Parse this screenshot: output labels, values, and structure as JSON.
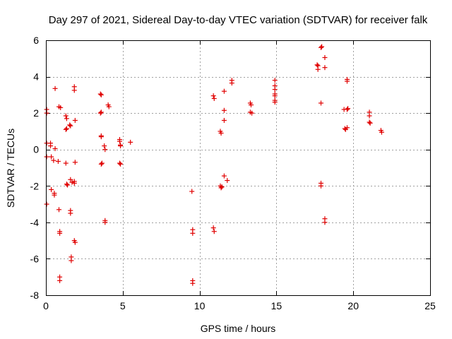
{
  "chart_data": {
    "type": "scatter",
    "title": "Day 297 of 2021, Sidereal Day-to-day VTEC variation (SDTVAR) for receiver falk",
    "xlabel": "GPS time / hours",
    "ylabel": "SDTVAR / TECUs",
    "xlim": [
      0,
      25
    ],
    "ylim": [
      -8,
      6
    ],
    "xticks": [
      0,
      5,
      10,
      15,
      20,
      25
    ],
    "yticks": [
      -8,
      -6,
      -4,
      -2,
      0,
      2,
      4,
      6
    ],
    "grid": true,
    "marker": "plus",
    "color": "#e00000",
    "series": [
      {
        "name": "SDTVAR",
        "points": [
          [
            0.05,
            2.2
          ],
          [
            0.05,
            2.0
          ],
          [
            0.05,
            0.35
          ],
          [
            0.05,
            -0.4
          ],
          [
            0.05,
            -3.0
          ],
          [
            0.3,
            0.35
          ],
          [
            0.3,
            0.2
          ],
          [
            0.35,
            -0.4
          ],
          [
            0.35,
            -2.2
          ],
          [
            0.5,
            -0.6
          ],
          [
            0.55,
            -2.4
          ],
          [
            0.6,
            3.35
          ],
          [
            0.6,
            0.05
          ],
          [
            0.55,
            -2.5
          ],
          [
            0.8,
            -0.65
          ],
          [
            0.85,
            -3.3
          ],
          [
            0.9,
            -4.5
          ],
          [
            0.9,
            -4.6
          ],
          [
            0.9,
            -7.0
          ],
          [
            0.9,
            -7.2
          ],
          [
            0.95,
            2.3
          ],
          [
            0.85,
            2.35
          ],
          [
            1.3,
            1.85
          ],
          [
            1.35,
            1.7
          ],
          [
            1.3,
            1.1
          ],
          [
            1.35,
            1.15
          ],
          [
            1.3,
            -0.75
          ],
          [
            1.35,
            -1.9
          ],
          [
            1.4,
            -1.95
          ],
          [
            1.55,
            1.35
          ],
          [
            1.6,
            1.3
          ],
          [
            1.6,
            -1.65
          ],
          [
            1.6,
            -3.35
          ],
          [
            1.6,
            -3.5
          ],
          [
            1.65,
            -5.9
          ],
          [
            1.65,
            -6.1
          ],
          [
            1.7,
            -1.8
          ],
          [
            1.85,
            3.45
          ],
          [
            1.85,
            3.25
          ],
          [
            1.9,
            1.6
          ],
          [
            1.9,
            -0.7
          ],
          [
            1.85,
            -1.75
          ],
          [
            1.85,
            -1.85
          ],
          [
            1.85,
            -5.0
          ],
          [
            1.9,
            -5.1
          ],
          [
            3.55,
            3.05
          ],
          [
            3.6,
            3.0
          ],
          [
            3.55,
            2.0
          ],
          [
            3.6,
            2.05
          ],
          [
            3.6,
            0.75
          ],
          [
            3.6,
            0.7
          ],
          [
            3.6,
            -0.8
          ],
          [
            3.65,
            -0.75
          ],
          [
            3.8,
            0.2
          ],
          [
            3.85,
            0.0
          ],
          [
            3.85,
            -3.9
          ],
          [
            3.85,
            -4.0
          ],
          [
            4.05,
            2.45
          ],
          [
            4.1,
            2.35
          ],
          [
            4.8,
            0.55
          ],
          [
            4.8,
            0.45
          ],
          [
            4.85,
            0.25
          ],
          [
            4.85,
            0.2
          ],
          [
            4.8,
            -0.75
          ],
          [
            4.85,
            -0.8
          ],
          [
            5.5,
            0.4
          ],
          [
            9.5,
            -2.3
          ],
          [
            9.55,
            -4.4
          ],
          [
            9.55,
            -4.6
          ],
          [
            9.55,
            -7.2
          ],
          [
            9.55,
            -7.35
          ],
          [
            10.9,
            2.95
          ],
          [
            10.95,
            2.8
          ],
          [
            10.9,
            -4.3
          ],
          [
            10.95,
            -4.5
          ],
          [
            11.35,
            1.0
          ],
          [
            11.4,
            0.9
          ],
          [
            11.35,
            -2.0
          ],
          [
            11.4,
            -2.1
          ],
          [
            11.45,
            -2.05
          ],
          [
            11.6,
            3.2
          ],
          [
            11.6,
            2.15
          ],
          [
            11.6,
            1.6
          ],
          [
            11.6,
            -1.45
          ],
          [
            11.8,
            -1.7
          ],
          [
            12.1,
            3.8
          ],
          [
            12.1,
            3.65
          ],
          [
            13.3,
            2.55
          ],
          [
            13.35,
            2.45
          ],
          [
            13.3,
            2.05
          ],
          [
            13.4,
            2.0
          ],
          [
            14.9,
            3.8
          ],
          [
            14.9,
            3.5
          ],
          [
            14.9,
            3.3
          ],
          [
            14.9,
            3.05
          ],
          [
            14.9,
            2.95
          ],
          [
            14.9,
            2.7
          ],
          [
            14.9,
            2.6
          ],
          [
            17.65,
            4.65
          ],
          [
            17.7,
            4.6
          ],
          [
            17.7,
            4.4
          ],
          [
            17.9,
            5.6
          ],
          [
            17.95,
            5.65
          ],
          [
            17.9,
            2.55
          ],
          [
            17.9,
            -1.85
          ],
          [
            17.9,
            -2.0
          ],
          [
            18.15,
            5.05
          ],
          [
            18.15,
            4.5
          ],
          [
            18.15,
            -3.8
          ],
          [
            18.15,
            -4.0
          ],
          [
            19.4,
            2.2
          ],
          [
            19.45,
            1.15
          ],
          [
            19.5,
            1.1
          ],
          [
            19.6,
            3.85
          ],
          [
            19.6,
            3.75
          ],
          [
            19.6,
            2.2
          ],
          [
            19.65,
            2.25
          ],
          [
            19.6,
            1.2
          ],
          [
            21.05,
            2.05
          ],
          [
            21.05,
            1.85
          ],
          [
            21.05,
            1.5
          ],
          [
            21.1,
            1.45
          ],
          [
            21.8,
            1.05
          ],
          [
            21.85,
            0.95
          ]
        ]
      }
    ]
  }
}
